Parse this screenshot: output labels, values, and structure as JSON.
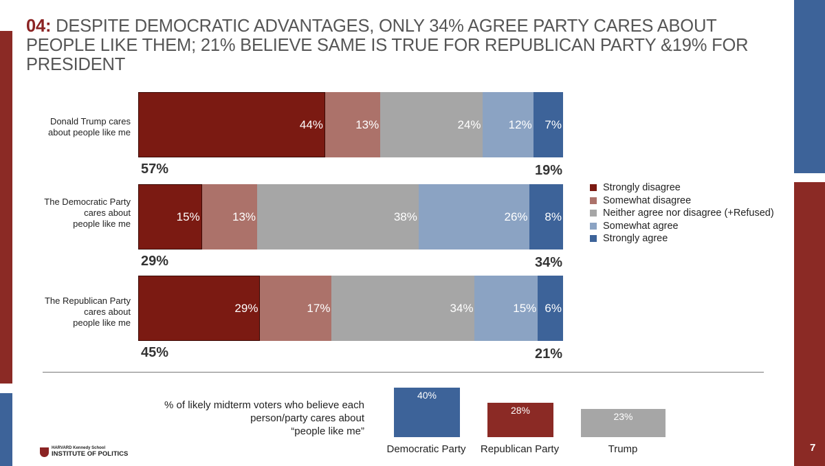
{
  "header": {
    "number": "04:",
    "title": "DESPITE DEMOCRATIC ADVANTAGES, ONLY 34% AGREE PARTY CARES ABOUT PEOPLE LIKE THEM; 21% BELIEVE SAME IS TRUE FOR REPUBLICAN PARTY &19% FOR PRESIDENT"
  },
  "colors": {
    "strongly_disagree": "#7b1a12",
    "somewhat_disagree": "#ac726a",
    "neither": "#a6a6a6",
    "somewhat_agree": "#8ba3c3",
    "strongly_agree": "#3d6399",
    "brand_red": "#8b2323",
    "brand_blue": "#3d6399"
  },
  "chart_data": [
    {
      "type": "bar",
      "orientation": "horizontal",
      "stacked": true,
      "unit": "%",
      "categories": [
        "Donald Trump cares about people like me",
        "The Democratic Party cares about people like me",
        "The Republican Party cares about people like me"
      ],
      "series": [
        {
          "name": "Strongly disagree",
          "values": [
            44,
            15,
            29
          ],
          "labels": [
            "44%",
            "15%",
            "29%"
          ]
        },
        {
          "name": "Somewhat disagree",
          "values": [
            13,
            13,
            17
          ],
          "labels": [
            "13%",
            "13%",
            "17%"
          ]
        },
        {
          "name": "Neither agree nor disagree (+Refused)",
          "values": [
            24,
            38,
            34
          ],
          "labels": [
            "24%",
            "38%",
            "34%"
          ]
        },
        {
          "name": "Somewhat agree",
          "values": [
            12,
            26,
            15
          ],
          "labels": [
            "12%",
            "26%",
            "15%"
          ]
        },
        {
          "name": "Strongly agree",
          "values": [
            7,
            8,
            6
          ],
          "labels": [
            "7%",
            "8%",
            "6%"
          ]
        }
      ],
      "net_disagree": [
        "57%",
        "29%",
        "45%"
      ],
      "net_agree": [
        "19%",
        "34%",
        "21%"
      ],
      "legend_position": "right"
    },
    {
      "type": "bar",
      "orientation": "vertical",
      "title": "% of likely midterm voters who believe each person/party  cares about “people  like me”",
      "title_lines": [
        "% of likely midterm voters who believe each",
        "person/party  cares about",
        "“people  like me”"
      ],
      "categories": [
        "Democratic Party",
        "Republican Party",
        "Trump"
      ],
      "values": [
        40,
        28,
        23
      ],
      "labels": [
        "40%",
        "28%",
        "23%"
      ],
      "colors": [
        "#3d6399",
        "#8b2a25",
        "#a6a6a6"
      ]
    }
  ],
  "footer": {
    "logo_line1": "HARVARD Kennedy School",
    "logo_line2": "INSTITUTE OF POLITICS",
    "page_number": "7"
  }
}
